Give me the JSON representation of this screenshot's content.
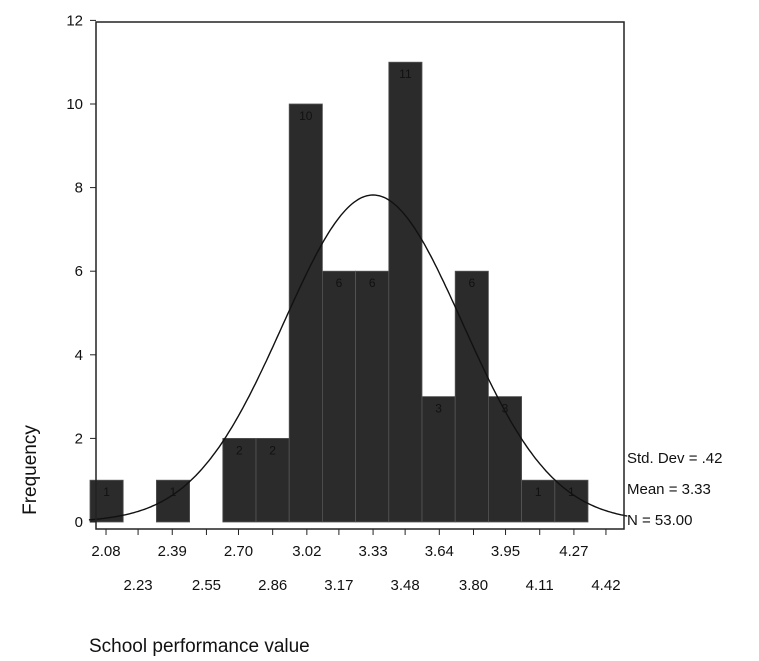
{
  "chart_data": {
    "type": "bar",
    "xlabel": "School performance value",
    "ylabel": "Frequency",
    "ylim": [
      0,
      12
    ],
    "yticks": [
      0,
      2,
      4,
      6,
      8,
      10,
      12
    ],
    "bin_start": 2.005,
    "bin_width": 0.1554,
    "bin_centers": [
      "2.08",
      "2.23",
      "2.39",
      "2.55",
      "2.70",
      "2.86",
      "3.02",
      "3.17",
      "3.33",
      "3.48",
      "3.64",
      "3.80",
      "3.95",
      "4.11",
      "4.27",
      "4.42"
    ],
    "values": [
      1,
      0,
      1,
      0,
      2,
      2,
      10,
      6,
      6,
      11,
      3,
      6,
      3,
      1,
      1,
      0
    ],
    "bar_labels": [
      "1",
      "",
      "1",
      "",
      "2",
      "2",
      "10",
      "6",
      "6",
      "11",
      "3",
      "6",
      "3",
      "1",
      "1",
      ""
    ],
    "tick_labels_row1": [
      "2.08",
      "2.39",
      "2.70",
      "3.02",
      "3.33",
      "3.64",
      "3.95",
      "4.27"
    ],
    "tick_labels_row2": [
      "2.23",
      "2.55",
      "2.86",
      "3.17",
      "3.48",
      "3.80",
      "4.11",
      "4.42"
    ],
    "normal_curve": {
      "mean": 3.33,
      "std_dev": 0.42,
      "n": 53
    },
    "stats": {
      "std_dev": "Std. Dev = .42",
      "mean": "Mean = 3.33",
      "n": "N = 53.00"
    },
    "bar_color": "#2b2b2b",
    "grid": false
  }
}
